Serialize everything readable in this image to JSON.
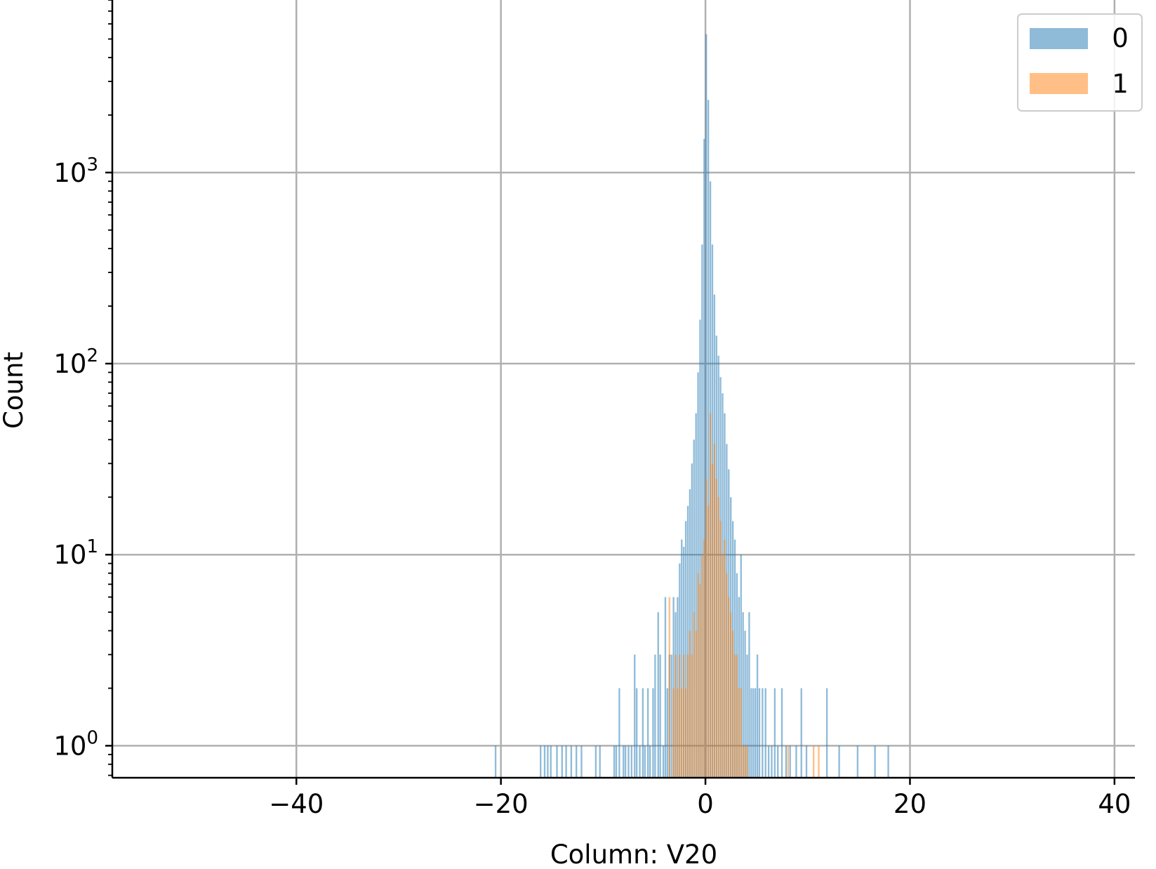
{
  "chart_data": {
    "type": "histogram",
    "xlabel": "Column: V20",
    "ylabel": "Count",
    "yscale": "log",
    "xlim": [
      -58,
      42
    ],
    "ylim": [
      0.68,
      8000
    ],
    "xticks": [
      -40,
      -20,
      0,
      20,
      40
    ],
    "xtick_labels": [
      "−40",
      "−20",
      "0",
      "20",
      "40"
    ],
    "yticks": [
      1,
      10,
      100,
      1000
    ],
    "ytick_labels": [
      {
        "base": "10",
        "exp": "0"
      },
      {
        "base": "10",
        "exp": "1"
      },
      {
        "base": "10",
        "exp": "2"
      },
      {
        "base": "10",
        "exp": "3"
      }
    ],
    "grid": true,
    "legend_position": "top-right",
    "series": [
      {
        "name": "0",
        "color": "#1f77b4",
        "opacity": 0.5,
        "bins": [
          [
            -20.6,
            1
          ],
          [
            -16.2,
            1
          ],
          [
            -15.8,
            1
          ],
          [
            -15.5,
            1
          ],
          [
            -15.2,
            1
          ],
          [
            -14.6,
            1
          ],
          [
            -14.1,
            1
          ],
          [
            -13.7,
            1
          ],
          [
            -13.2,
            1
          ],
          [
            -12.7,
            1
          ],
          [
            -12.2,
            1
          ],
          [
            -10.8,
            1
          ],
          [
            -10.4,
            1
          ],
          [
            -9.0,
            1
          ],
          [
            -8.8,
            1
          ],
          [
            -8.5,
            2
          ],
          [
            -8.1,
            1
          ],
          [
            -7.9,
            1
          ],
          [
            -7.6,
            1
          ],
          [
            -7.3,
            1
          ],
          [
            -7.0,
            3
          ],
          [
            -6.8,
            2
          ],
          [
            -6.5,
            1
          ],
          [
            -6.2,
            2
          ],
          [
            -6.0,
            1
          ],
          [
            -5.7,
            2
          ],
          [
            -5.5,
            1
          ],
          [
            -5.2,
            2
          ],
          [
            -5.0,
            3
          ],
          [
            -4.7,
            5
          ],
          [
            -4.5,
            3
          ],
          [
            -4.2,
            1
          ],
          [
            -4.0,
            6
          ],
          [
            -3.8,
            2
          ],
          [
            -3.6,
            3
          ],
          [
            -3.4,
            3
          ],
          [
            -3.2,
            6
          ],
          [
            -3.0,
            5
          ],
          [
            -2.8,
            6
          ],
          [
            -2.6,
            9
          ],
          [
            -2.4,
            12
          ],
          [
            -2.2,
            11
          ],
          [
            -2.0,
            15
          ],
          [
            -1.8,
            18
          ],
          [
            -1.6,
            22
          ],
          [
            -1.4,
            30
          ],
          [
            -1.2,
            40
          ],
          [
            -1.0,
            55
          ],
          [
            -0.8,
            90
          ],
          [
            -0.6,
            170
          ],
          [
            -0.4,
            420
          ],
          [
            -0.2,
            1500
          ],
          [
            0.0,
            5300
          ],
          [
            0.2,
            2400
          ],
          [
            0.4,
            900
          ],
          [
            0.6,
            420
          ],
          [
            0.8,
            230
          ],
          [
            1.0,
            140
          ],
          [
            1.2,
            110
          ],
          [
            1.4,
            85
          ],
          [
            1.6,
            70
          ],
          [
            1.8,
            55
          ],
          [
            2.0,
            38
          ],
          [
            2.2,
            28
          ],
          [
            2.4,
            20
          ],
          [
            2.6,
            15
          ],
          [
            2.8,
            12
          ],
          [
            3.0,
            8
          ],
          [
            3.2,
            6
          ],
          [
            3.4,
            10
          ],
          [
            3.6,
            5
          ],
          [
            3.8,
            4
          ],
          [
            4.0,
            3
          ],
          [
            4.2,
            5
          ],
          [
            4.4,
            2
          ],
          [
            4.6,
            2
          ],
          [
            4.8,
            2
          ],
          [
            5.0,
            3
          ],
          [
            5.2,
            2
          ],
          [
            5.5,
            2
          ],
          [
            5.8,
            2
          ],
          [
            6.1,
            1
          ],
          [
            6.4,
            1
          ],
          [
            6.7,
            2
          ],
          [
            7.0,
            1
          ],
          [
            7.4,
            2
          ],
          [
            7.8,
            1
          ],
          [
            8.2,
            1
          ],
          [
            8.8,
            1
          ],
          [
            9.3,
            2
          ],
          [
            9.8,
            1
          ],
          [
            11.8,
            2
          ],
          [
            13.0,
            1
          ],
          [
            14.8,
            1
          ],
          [
            16.5,
            1
          ],
          [
            17.8,
            1
          ]
        ]
      },
      {
        "name": "1",
        "color": "#ff7f0e",
        "opacity": 0.5,
        "bins": [
          [
            -3.6,
            6
          ],
          [
            -3.2,
            2
          ],
          [
            -3.0,
            3
          ],
          [
            -2.8,
            2
          ],
          [
            -2.6,
            3
          ],
          [
            -2.4,
            2
          ],
          [
            -2.2,
            3
          ],
          [
            -2.0,
            2
          ],
          [
            -1.8,
            3
          ],
          [
            -1.6,
            4
          ],
          [
            -1.4,
            3
          ],
          [
            -1.2,
            5
          ],
          [
            -1.0,
            4
          ],
          [
            -0.8,
            8
          ],
          [
            -0.6,
            7
          ],
          [
            -0.4,
            10
          ],
          [
            -0.2,
            12
          ],
          [
            0.0,
            25
          ],
          [
            0.2,
            18
          ],
          [
            0.4,
            55
          ],
          [
            0.6,
            30
          ],
          [
            0.8,
            38
          ],
          [
            1.0,
            25
          ],
          [
            1.2,
            20
          ],
          [
            1.4,
            15
          ],
          [
            1.6,
            10
          ],
          [
            1.8,
            12
          ],
          [
            2.0,
            8
          ],
          [
            2.2,
            6
          ],
          [
            2.4,
            5
          ],
          [
            2.6,
            4
          ],
          [
            2.8,
            3
          ],
          [
            3.0,
            3
          ],
          [
            3.2,
            2
          ],
          [
            3.4,
            2
          ],
          [
            3.6,
            1
          ],
          [
            3.8,
            1
          ],
          [
            4.0,
            1
          ],
          [
            8.0,
            1
          ],
          [
            10.5,
            1
          ],
          [
            11.0,
            1
          ]
        ]
      }
    ]
  }
}
